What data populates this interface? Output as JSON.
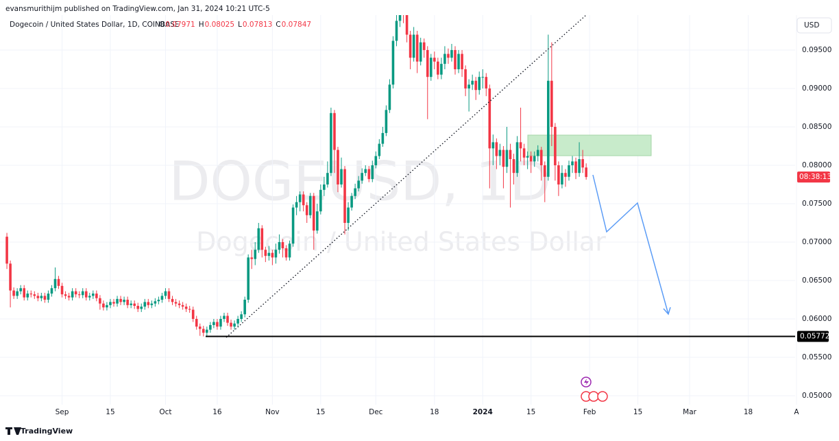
{
  "header": {
    "author_line": "evansmurithijm published on TradingView.com, Jan 31, 2024 10:21 UTC-5",
    "symbol": "Dogecoin / United States Dollar, 1D, COINBASE",
    "ohlc_labels": [
      "O",
      "H",
      "L",
      "C"
    ],
    "currency": "USD",
    "countdown": "08:38:13",
    "watermark_symbol": "DOGEUSD, 1D",
    "watermark_name": "Dogecoin / United States Dollar",
    "brand": "TradingView"
  },
  "chart_data": {
    "type": "candlestick",
    "up_color": "#089981",
    "down_color": "#f23645",
    "grid": true,
    "x": [
      0,
      1,
      2,
      3,
      4,
      5,
      6,
      7,
      8,
      9,
      10,
      11,
      12,
      13,
      14,
      15,
      16,
      17,
      18,
      19,
      20,
      21,
      22,
      23,
      24,
      25,
      26,
      27,
      28,
      29,
      30,
      31,
      32,
      33,
      34,
      35,
      36,
      37,
      38,
      39,
      40,
      41,
      42,
      43,
      44,
      45,
      46,
      47,
      48,
      49,
      50,
      51,
      52,
      53,
      54,
      55,
      56,
      57,
      58,
      59,
      60,
      61,
      62,
      63,
      64,
      65,
      66,
      67,
      68,
      69,
      70,
      71,
      72,
      73,
      74,
      75,
      76,
      77,
      78,
      79,
      80,
      81,
      82,
      83,
      84,
      85,
      86,
      87,
      88,
      89,
      90,
      91,
      92,
      93,
      94,
      95,
      96,
      97,
      98,
      99,
      100,
      101,
      102,
      103,
      104,
      105,
      106,
      107,
      108,
      109,
      110,
      111,
      112,
      113,
      114,
      115,
      116,
      117,
      118,
      119,
      120,
      121,
      122,
      123,
      124,
      125,
      126,
      127,
      128,
      129,
      130,
      131,
      132,
      133,
      134,
      135,
      136,
      137,
      138,
      139,
      140,
      141,
      142,
      143,
      144,
      145,
      146,
      147,
      148,
      149,
      150,
      151,
      152,
      153,
      154,
      155,
      156,
      157,
      158,
      159,
      160,
      161,
      162,
      163,
      164,
      165,
      166,
      167,
      168
    ],
    "open": [
      0.0707,
      0.0672,
      0.0637,
      0.063,
      0.0636,
      0.064,
      0.0628,
      0.0633,
      0.0632,
      0.063,
      0.0627,
      0.063,
      0.0625,
      0.0633,
      0.064,
      0.0652,
      0.0643,
      0.0632,
      0.063,
      0.0628,
      0.0636,
      0.0632,
      0.0631,
      0.0636,
      0.0628,
      0.063,
      0.0633,
      0.0627,
      0.062,
      0.0615,
      0.0618,
      0.0622,
      0.062,
      0.0626,
      0.0622,
      0.0625,
      0.0618,
      0.062,
      0.0617,
      0.0613,
      0.0616,
      0.0622,
      0.0618,
      0.062,
      0.0623,
      0.0625,
      0.063,
      0.0636,
      0.0626,
      0.0622,
      0.062,
      0.0618,
      0.0616,
      0.0613,
      0.0612,
      0.06,
      0.059,
      0.0587,
      0.0582,
      0.0586,
      0.0592,
      0.0596,
      0.059,
      0.06,
      0.0604,
      0.0595,
      0.059,
      0.0594,
      0.06,
      0.0606,
      0.0625,
      0.068,
      0.0678,
      0.069,
      0.0718,
      0.069,
      0.0682,
      0.0686,
      0.068,
      0.069,
      0.07,
      0.0692,
      0.068,
      0.0698,
      0.0745,
      0.0752,
      0.0762,
      0.0748,
      0.0735,
      0.076,
      0.0715,
      0.074,
      0.0768,
      0.0775,
      0.079,
      0.0868,
      0.082,
      0.0775,
      0.0795,
      0.0725,
      0.0745,
      0.076,
      0.077,
      0.078,
      0.079,
      0.0795,
      0.0782,
      0.08,
      0.0812,
      0.0828,
      0.0842,
      0.0872,
      0.0905,
      0.0962,
      0.0988,
      0.1,
      0.0998,
      0.097,
      0.094,
      0.097,
      0.0935,
      0.096,
      0.095,
      0.0915,
      0.094,
      0.0935,
      0.0918,
      0.0932,
      0.0945,
      0.094,
      0.095,
      0.0925,
      0.0945,
      0.0925,
      0.09,
      0.0905,
      0.091,
      0.0898,
      0.0915,
      0.0915,
      0.09,
      0.0822,
      0.083,
      0.0812,
      0.082,
      0.0798,
      0.082,
      0.0808,
      0.079,
      0.083,
      0.0822,
      0.081,
      0.0812,
      0.0805,
      0.0812,
      0.082,
      0.08,
      0.0785,
      0.091,
      0.085,
      0.08,
      0.0775,
      0.079,
      0.0785,
      0.08,
      0.0805,
      0.079,
      0.0808,
      0.07971
    ],
    "high": [
      0.0712,
      0.0676,
      0.0641,
      0.064,
      0.0644,
      0.0644,
      0.0637,
      0.0637,
      0.0636,
      0.0634,
      0.0634,
      0.0634,
      0.0637,
      0.0644,
      0.0667,
      0.0656,
      0.0647,
      0.0636,
      0.0634,
      0.064,
      0.064,
      0.0636,
      0.064,
      0.064,
      0.0634,
      0.0637,
      0.0637,
      0.0631,
      0.0624,
      0.0622,
      0.0626,
      0.0626,
      0.063,
      0.063,
      0.0629,
      0.0629,
      0.0624,
      0.0624,
      0.0621,
      0.062,
      0.0626,
      0.0626,
      0.0624,
      0.0627,
      0.0629,
      0.0634,
      0.064,
      0.064,
      0.063,
      0.0626,
      0.0624,
      0.0622,
      0.062,
      0.0617,
      0.0616,
      0.0604,
      0.0594,
      0.0591,
      0.059,
      0.0596,
      0.06,
      0.06,
      0.0604,
      0.0608,
      0.0608,
      0.0599,
      0.0598,
      0.0604,
      0.061,
      0.0629,
      0.0684,
      0.069,
      0.07,
      0.0725,
      0.0722,
      0.0694,
      0.0695,
      0.069,
      0.0698,
      0.071,
      0.0704,
      0.0696,
      0.0702,
      0.0749,
      0.076,
      0.0766,
      0.0766,
      0.0752,
      0.0764,
      0.0764,
      0.075,
      0.0775,
      0.0785,
      0.0805,
      0.0875,
      0.0872,
      0.0824,
      0.081,
      0.0799,
      0.0752,
      0.0764,
      0.0776,
      0.0786,
      0.0796,
      0.08,
      0.0799,
      0.0806,
      0.0818,
      0.0834,
      0.085,
      0.0878,
      0.0912,
      0.0968,
      0.0998,
      0.101,
      0.101,
      0.1002,
      0.0975,
      0.098,
      0.0975,
      0.0966,
      0.0965,
      0.0955,
      0.0945,
      0.0948,
      0.094,
      0.094,
      0.0955,
      0.0952,
      0.0958,
      0.0955,
      0.095,
      0.095,
      0.093,
      0.0912,
      0.0918,
      0.0915,
      0.0922,
      0.0925,
      0.092,
      0.0905,
      0.084,
      0.0835,
      0.0828,
      0.0825,
      0.085,
      0.0828,
      0.0815,
      0.0838,
      0.0875,
      0.0828,
      0.0818,
      0.0818,
      0.0818,
      0.0826,
      0.0824,
      0.0805,
      0.097,
      0.096,
      0.0855,
      0.0805,
      0.08,
      0.0795,
      0.0806,
      0.0812,
      0.081,
      0.083,
      0.082,
      0.08025
    ],
    "low": [
      0.0665,
      0.0615,
      0.0626,
      0.0626,
      0.0632,
      0.0624,
      0.0624,
      0.0628,
      0.0626,
      0.0623,
      0.0623,
      0.0621,
      0.0621,
      0.0629,
      0.0636,
      0.0639,
      0.0628,
      0.0626,
      0.0624,
      0.0624,
      0.0628,
      0.0627,
      0.0627,
      0.0624,
      0.0624,
      0.0626,
      0.0623,
      0.0612,
      0.0611,
      0.0611,
      0.0614,
      0.0616,
      0.0616,
      0.0618,
      0.0618,
      0.0614,
      0.0614,
      0.0613,
      0.0609,
      0.0609,
      0.0612,
      0.0614,
      0.0614,
      0.0616,
      0.0619,
      0.0621,
      0.0626,
      0.0622,
      0.0618,
      0.0616,
      0.0614,
      0.0612,
      0.0609,
      0.0608,
      0.0596,
      0.0586,
      0.0578,
      0.05772,
      0.0578,
      0.0582,
      0.0588,
      0.0586,
      0.0586,
      0.0596,
      0.0591,
      0.0586,
      0.0586,
      0.059,
      0.0596,
      0.0602,
      0.0621,
      0.0665,
      0.067,
      0.0686,
      0.068,
      0.0674,
      0.0676,
      0.067,
      0.0672,
      0.0685,
      0.068,
      0.0676,
      0.0676,
      0.0694,
      0.0735,
      0.074,
      0.074,
      0.0725,
      0.0731,
      0.069,
      0.0711,
      0.0736,
      0.076,
      0.0771,
      0.0786,
      0.079,
      0.0765,
      0.0771,
      0.071,
      0.0715,
      0.0741,
      0.0756,
      0.0766,
      0.0776,
      0.0786,
      0.0778,
      0.0778,
      0.0796,
      0.0808,
      0.0824,
      0.0838,
      0.0868,
      0.09,
      0.0955,
      0.098,
      0.0985,
      0.096,
      0.0925,
      0.0935,
      0.092,
      0.093,
      0.094,
      0.086,
      0.091,
      0.0925,
      0.0912,
      0.0912,
      0.0925,
      0.0932,
      0.0935,
      0.0918,
      0.092,
      0.0915,
      0.089,
      0.087,
      0.0898,
      0.0885,
      0.0892,
      0.09,
      0.089,
      0.077,
      0.08,
      0.0795,
      0.08,
      0.077,
      0.079,
      0.0745,
      0.0775,
      0.0785,
      0.0805,
      0.08,
      0.0795,
      0.079,
      0.0798,
      0.0805,
      0.078,
      0.0752,
      0.078,
      0.0825,
      0.078,
      0.076,
      0.077,
      0.0772,
      0.078,
      0.079,
      0.0782,
      0.0785,
      0.079,
      0.07813
    ],
    "close": [
      0.0672,
      0.0637,
      0.063,
      0.0636,
      0.064,
      0.0628,
      0.0633,
      0.0632,
      0.063,
      0.0627,
      0.063,
      0.0625,
      0.0633,
      0.064,
      0.0652,
      0.0643,
      0.0632,
      0.063,
      0.0628,
      0.0636,
      0.0632,
      0.0631,
      0.0636,
      0.0628,
      0.063,
      0.0633,
      0.0627,
      0.062,
      0.0615,
      0.0618,
      0.0622,
      0.062,
      0.0626,
      0.0622,
      0.0625,
      0.0618,
      0.062,
      0.0617,
      0.0613,
      0.0616,
      0.0622,
      0.0618,
      0.062,
      0.0623,
      0.0625,
      0.063,
      0.0636,
      0.0626,
      0.0622,
      0.062,
      0.0618,
      0.0616,
      0.0613,
      0.0612,
      0.06,
      0.059,
      0.0587,
      0.0582,
      0.0586,
      0.0592,
      0.0596,
      0.059,
      0.06,
      0.0604,
      0.0595,
      0.059,
      0.0594,
      0.06,
      0.0606,
      0.0625,
      0.068,
      0.0678,
      0.069,
      0.0718,
      0.069,
      0.0682,
      0.0686,
      0.068,
      0.069,
      0.07,
      0.0692,
      0.068,
      0.0698,
      0.0745,
      0.0752,
      0.0762,
      0.0748,
      0.0735,
      0.076,
      0.0715,
      0.074,
      0.0768,
      0.0775,
      0.079,
      0.0868,
      0.082,
      0.0775,
      0.0795,
      0.0725,
      0.0745,
      0.076,
      0.077,
      0.078,
      0.079,
      0.0795,
      0.0782,
      0.08,
      0.0812,
      0.0828,
      0.0842,
      0.0872,
      0.0905,
      0.0962,
      0.0988,
      0.1,
      0.0998,
      0.097,
      0.094,
      0.097,
      0.0935,
      0.096,
      0.095,
      0.0915,
      0.094,
      0.0935,
      0.0918,
      0.0932,
      0.0945,
      0.094,
      0.095,
      0.0925,
      0.0945,
      0.0925,
      0.09,
      0.0905,
      0.091,
      0.0898,
      0.0915,
      0.0915,
      0.09,
      0.0822,
      0.083,
      0.0812,
      0.082,
      0.0798,
      0.082,
      0.0808,
      0.079,
      0.083,
      0.0822,
      0.081,
      0.0812,
      0.0805,
      0.0812,
      0.082,
      0.08,
      0.0785,
      0.091,
      0.085,
      0.08,
      0.0775,
      0.079,
      0.0785,
      0.08,
      0.0805,
      0.079,
      0.0808,
      0.07971,
      0.07847
    ],
    "xlim": [
      -2,
      229
    ],
    "xticks": [
      {
        "value": 16,
        "label": "Sep"
      },
      {
        "value": 30,
        "label": "15"
      },
      {
        "value": 46,
        "label": "Oct"
      },
      {
        "value": 61,
        "label": "16"
      },
      {
        "value": 77,
        "label": "Nov"
      },
      {
        "value": 91,
        "label": "15"
      },
      {
        "value": 107,
        "label": "Dec"
      },
      {
        "value": 124,
        "label": "18"
      },
      {
        "value": 138,
        "label": "2024"
      },
      {
        "value": 152,
        "label": "15"
      },
      {
        "value": 169,
        "label": "Feb"
      },
      {
        "value": 183,
        "label": "15"
      },
      {
        "value": 198,
        "label": "Mar"
      },
      {
        "value": 215,
        "label": "18"
      },
      {
        "value": 229,
        "label": "A"
      }
    ],
    "ylim": [
      0.04884,
      0.09955
    ],
    "yticks": [
      {
        "value": 0.05,
        "label": "0.05000"
      },
      {
        "value": 0.055,
        "label": "0.05500"
      },
      {
        "value": 0.06,
        "label": "0.06000"
      },
      {
        "value": 0.065,
        "label": "0.06500"
      },
      {
        "value": 0.07,
        "label": "0.07000"
      },
      {
        "value": 0.075,
        "label": "0.07500"
      },
      {
        "value": 0.08,
        "label": "0.08000"
      },
      {
        "value": 0.085,
        "label": "0.08500"
      },
      {
        "value": 0.09,
        "label": "0.09000"
      },
      {
        "value": 0.095,
        "label": "0.09500"
      }
    ],
    "hline": {
      "value": 0.05772
    }
  }
}
